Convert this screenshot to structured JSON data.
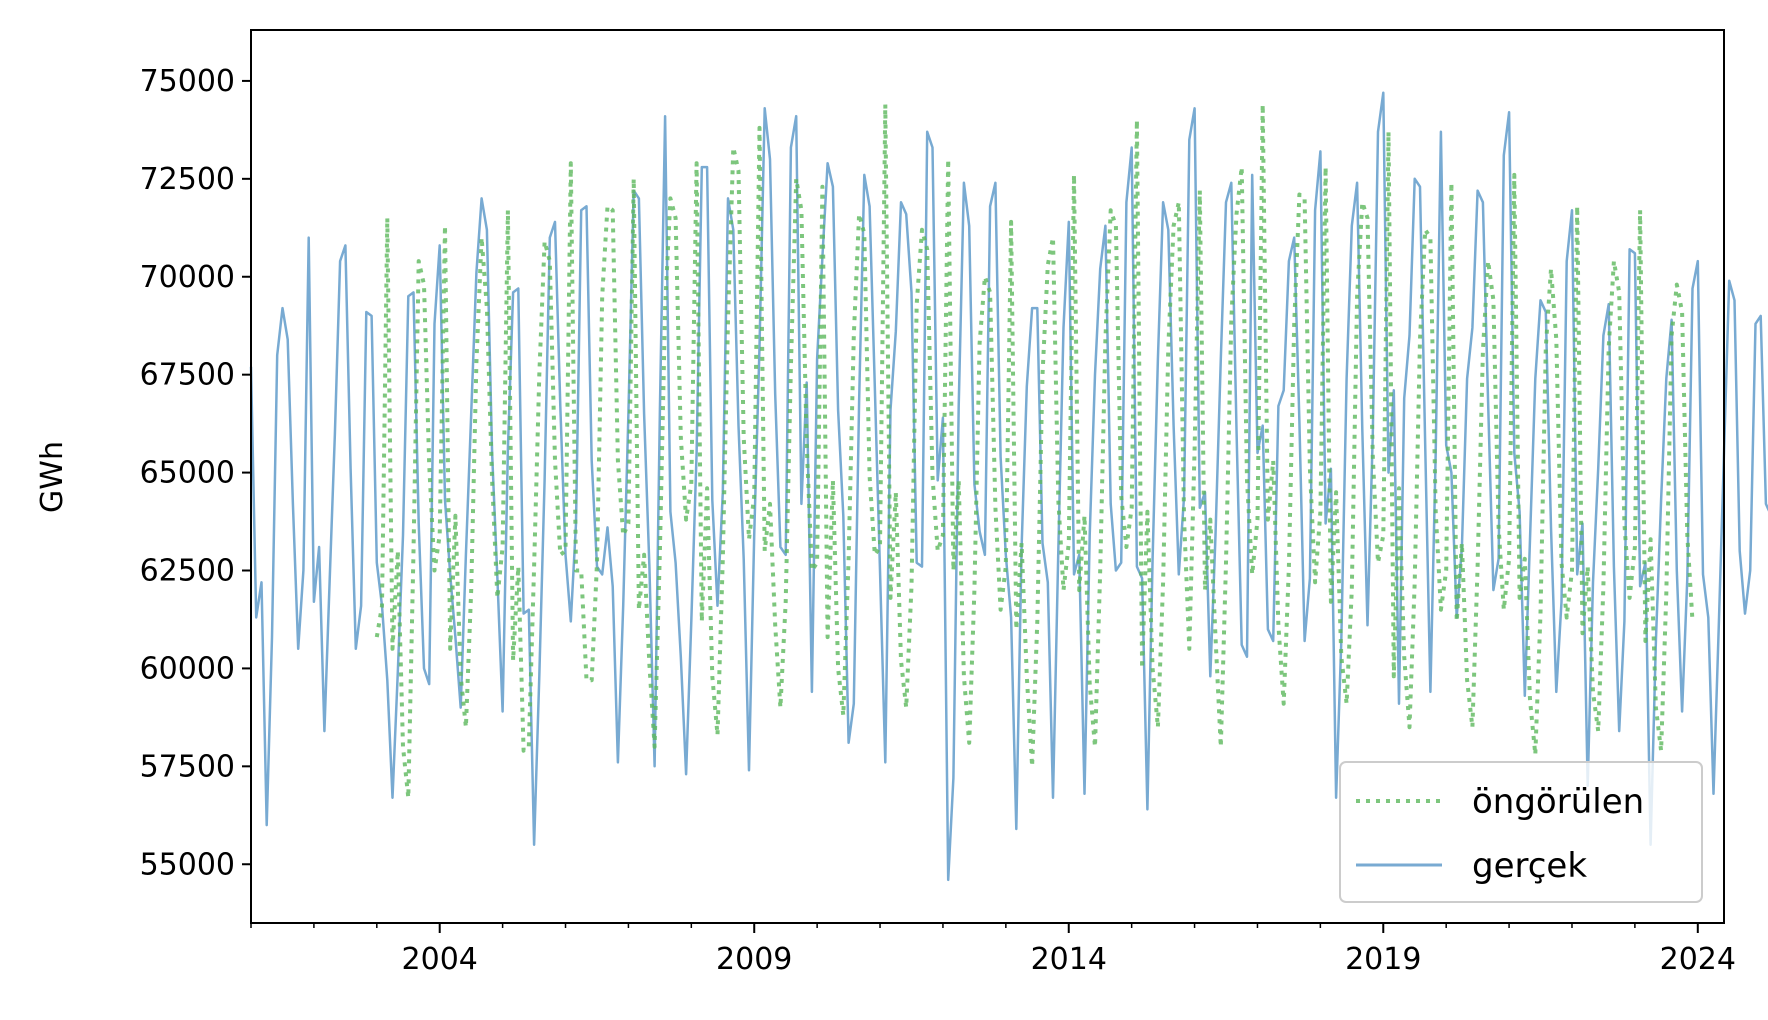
{
  "chart_data": {
    "type": "line",
    "title": "",
    "xlabel": "",
    "ylabel": "GWh",
    "xlim": [
      "2001-01",
      "2024-06"
    ],
    "ylim": [
      53500,
      76300
    ],
    "yticks": [
      55000,
      57500,
      60000,
      62500,
      65000,
      67500,
      70000,
      72500,
      75000
    ],
    "xticks": [
      {
        "label": "2004",
        "date": "2004-01"
      },
      {
        "label": "2009",
        "date": "2009-01"
      },
      {
        "label": "2014",
        "date": "2014-01"
      },
      {
        "label": "2019",
        "date": "2019-01"
      },
      {
        "label": "2024",
        "date": "2024-01"
      }
    ],
    "grid": false,
    "legend_position": "lower-right",
    "series": [
      {
        "name": "öngörülen",
        "style": "dotted",
        "color": "#5cb85c",
        "start": "2003-01",
        "values": [
          60800,
          61600,
          71500,
          60500,
          63000,
          58000,
          56700,
          63000,
          70400,
          69800,
          65200,
          62500,
          63400,
          71300,
          60500,
          63900,
          59800,
          58500,
          62000,
          67800,
          71000,
          69200,
          64800,
          61800,
          63100,
          71700,
          60200,
          62600,
          57900,
          58000,
          62600,
          67500,
          70900,
          70400,
          65300,
          62900,
          63000,
          72900,
          62500,
          62500,
          59700,
          59700,
          62700,
          69500,
          71800,
          71700,
          65300,
          63400,
          63700,
          72500,
          61500,
          62900,
          60100,
          58000,
          63000,
          69200,
          72000,
          71500,
          65900,
          63800,
          64700,
          72900,
          61200,
          64600,
          59800,
          58300,
          62800,
          68900,
          73300,
          72700,
          65900,
          63300,
          64400,
          73800,
          63000,
          64200,
          61100,
          59000,
          61700,
          67700,
          72500,
          71700,
          65700,
          62500,
          62700,
          72300,
          60800,
          64800,
          60000,
          58800,
          62800,
          68500,
          71600,
          71100,
          64900,
          62900,
          63100,
          74400,
          61800,
          64500,
          60200,
          59000,
          62100,
          69300,
          71200,
          70700,
          64900,
          63000,
          63400,
          73000,
          62500,
          64800,
          59800,
          58100,
          62000,
          68300,
          70000,
          69600,
          64100,
          61500,
          62600,
          71400,
          61000,
          63200,
          59800,
          57500,
          61200,
          67500,
          70300,
          71000,
          64300,
          62000,
          63200,
          72600,
          62000,
          63900,
          59600,
          58000,
          62500,
          68400,
          71700,
          71300,
          64400,
          63100,
          64100,
          74000,
          60000,
          64000,
          60000,
          58500,
          62200,
          68200,
          71300,
          71900,
          63800,
          60500,
          65600,
          72200,
          62000,
          63800,
          60800,
          58000,
          62700,
          68900,
          71600,
          72800,
          64800,
          62400,
          63800,
          74400,
          63800,
          65300,
          61100,
          59100,
          62600,
          68800,
          72100,
          72000,
          65100,
          62200,
          64000,
          72800,
          61700,
          64500,
          60300,
          59100,
          62000,
          69500,
          71900,
          71500,
          65400,
          62700,
          63400,
          73700,
          59800,
          64600,
          60300,
          58500,
          62200,
          68400,
          71200,
          71000,
          64000,
          61500,
          62500,
          72400,
          61200,
          63200,
          59700,
          58500,
          62600,
          68100,
          70400,
          69400,
          63600,
          61500,
          62800,
          72600,
          61800,
          62800,
          59200,
          57800,
          61400,
          68200,
          70200,
          68400,
          62700,
          61300,
          62500,
          71800,
          60900,
          62600,
          59400,
          58400,
          62100,
          68200,
          70400,
          69600,
          63700,
          61800,
          63100,
          71700,
          60700,
          63300,
          59000,
          57900,
          61900,
          68500,
          69800,
          69100,
          63400,
          61200
        ]
      },
      {
        "name": "gerçek",
        "style": "solid",
        "color": "#3f86bf",
        "start": "2001-01",
        "values": [
          67700,
          61300,
          62200,
          56000,
          60800,
          68000,
          69200,
          68400,
          64200,
          60500,
          62500,
          71000,
          61700,
          63100,
          58400,
          62200,
          66000,
          70400,
          70800,
          65100,
          60500,
          61600,
          69100,
          69000,
          62700,
          61600,
          59700,
          56700,
          59900,
          63400,
          69500,
          69600,
          63700,
          60000,
          59600,
          68800,
          70800,
          64300,
          62400,
          60800,
          59000,
          62900,
          66500,
          70100,
          72000,
          71200,
          65500,
          62300,
          58900,
          65600,
          69600,
          69700,
          61400,
          61500,
          55500,
          59800,
          64800,
          71000,
          71400,
          66700,
          62900,
          61200,
          63700,
          71700,
          71800,
          65300,
          62600,
          62400,
          63600,
          62100,
          57600,
          61600,
          66500,
          72200,
          72000,
          66500,
          62600,
          57500,
          66600,
          74100,
          64000,
          62700,
          60300,
          57300,
          61200,
          65500,
          72800,
          72800,
          64300,
          61600,
          64500,
          72000,
          71200,
          66200,
          62800,
          57400,
          63400,
          68200,
          74300,
          73000,
          67000,
          63100,
          62900,
          73300,
          74100,
          64200,
          67300,
          59400,
          67900,
          70500,
          72900,
          72300,
          66600,
          63900,
          58100,
          59100,
          66800,
          72600,
          71800,
          67200,
          62500,
          57600,
          66600,
          68600,
          71900,
          71600,
          69600,
          62700,
          62600,
          73700,
          73300,
          64800,
          66400,
          54600,
          57200,
          66700,
          72400,
          71300,
          64700,
          63500,
          62900,
          71800,
          72400,
          65400,
          62900,
          61300,
          55900,
          63100,
          67200,
          69200,
          69200,
          63200,
          62200,
          56700,
          63000,
          68700,
          71400,
          62400,
          62900,
          56800,
          63400,
          67500,
          70200,
          71300,
          64200,
          62500,
          62700,
          71900,
          73300,
          62600,
          62300,
          56400,
          62800,
          67900,
          71900,
          71200,
          66200,
          62400,
          64400,
          73500,
          74300,
          64100,
          64500,
          59800,
          63400,
          67900,
          71900,
          72400,
          66100,
          60600,
          60300,
          72600,
          65500,
          66200,
          61000,
          60700,
          66700,
          67100,
          70400,
          71000,
          66300,
          60700,
          62300,
          71700,
          73200,
          63700,
          65100,
          56700,
          60700,
          67400,
          71300,
          72400,
          66100,
          61100,
          66000,
          73700,
          74700,
          65000,
          67100,
          59100,
          66900,
          68500,
          72500,
          72300,
          65700,
          59400,
          65500,
          73700,
          65700,
          65000,
          61300,
          63100,
          67400,
          68700,
          72200,
          71900,
          66800,
          62000,
          62800,
          73100,
          74200,
          65500,
          64000,
          59300,
          63300,
          67400,
          69400,
          69100,
          63600,
          59400,
          61700,
          70400,
          71700,
          62400,
          63700,
          57000,
          62200,
          65100,
          68500,
          69300,
          62600,
          58400,
          61200,
          70700,
          70600,
          62100,
          62700,
          55500,
          60700,
          64300,
          67400,
          68900,
          62500,
          58900,
          62300,
          69700,
          70400,
          62400,
          61300,
          56800,
          61100,
          65500,
          69900,
          69400,
          63000,
          61400,
          62500,
          68800,
          69000,
          64200,
          63900,
          57300,
          65100,
          68300
        ]
      }
    ]
  }
}
